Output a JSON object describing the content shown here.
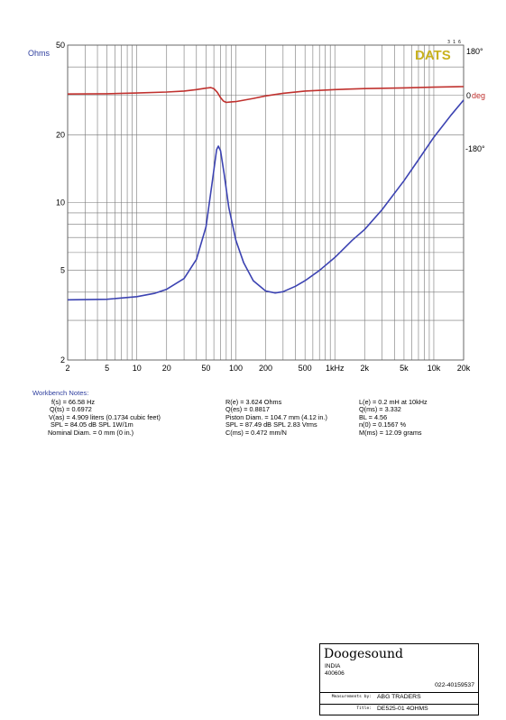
{
  "chart_data": {
    "type": "line",
    "x_scale": "log",
    "y_scale": "log",
    "xlim": [
      2,
      20000
    ],
    "ylim": [
      2,
      50
    ],
    "xticks": [
      2,
      5,
      10,
      20,
      50,
      100,
      200,
      500,
      1000,
      2000,
      5000,
      10000,
      20000
    ],
    "xtick_labels": [
      "2",
      "5",
      "10",
      "20",
      "50",
      "100",
      "200",
      "500",
      "1kHz",
      "2k",
      "5k",
      "10k",
      "20k"
    ],
    "yticks": [
      2,
      5,
      10,
      20,
      50
    ],
    "ytick_labels": [
      "2",
      "5",
      "10",
      "20",
      "50"
    ],
    "ylabel": "Ohms",
    "phase_axis": {
      "range": [
        -180,
        180
      ],
      "labels": [
        "180°",
        "0",
        "deg",
        "-180°"
      ]
    },
    "grid": true,
    "series": [
      {
        "color": "#3c43b2",
        "axis": "impedance_ohms",
        "points": [
          [
            2,
            3.7
          ],
          [
            5,
            3.72
          ],
          [
            10,
            3.82
          ],
          [
            15,
            3.95
          ],
          [
            20,
            4.12
          ],
          [
            30,
            4.6
          ],
          [
            40,
            5.6
          ],
          [
            50,
            7.8
          ],
          [
            58,
            12.5
          ],
          [
            64,
            17.2
          ],
          [
            66.58,
            17.8
          ],
          [
            70,
            17.0
          ],
          [
            76,
            13.5
          ],
          [
            85,
            9.5
          ],
          [
            100,
            6.8
          ],
          [
            120,
            5.4
          ],
          [
            150,
            4.5
          ],
          [
            200,
            4.05
          ],
          [
            250,
            3.97
          ],
          [
            300,
            4.02
          ],
          [
            400,
            4.25
          ],
          [
            500,
            4.5
          ],
          [
            700,
            5.0
          ],
          [
            1000,
            5.7
          ],
          [
            1500,
            6.8
          ],
          [
            2000,
            7.6
          ],
          [
            3000,
            9.3
          ],
          [
            5000,
            12.5
          ],
          [
            7000,
            15.5
          ],
          [
            10000,
            19.5
          ],
          [
            15000,
            24.5
          ],
          [
            20000,
            28.5
          ]
        ]
      },
      {
        "color": "#c0322f",
        "axis": "phase_deg",
        "points": [
          [
            2,
            3
          ],
          [
            5,
            4
          ],
          [
            10,
            7
          ],
          [
            20,
            11
          ],
          [
            30,
            15
          ],
          [
            40,
            21
          ],
          [
            50,
            27
          ],
          [
            56,
            29
          ],
          [
            60,
            25
          ],
          [
            65,
            10
          ],
          [
            70,
            -10
          ],
          [
            75,
            -22
          ],
          [
            80,
            -27
          ],
          [
            90,
            -25
          ],
          [
            100,
            -24
          ],
          [
            150,
            -13
          ],
          [
            200,
            -4
          ],
          [
            300,
            6
          ],
          [
            500,
            15
          ],
          [
            1000,
            21
          ],
          [
            2000,
            25
          ],
          [
            5000,
            28
          ],
          [
            10000,
            31
          ],
          [
            20000,
            33
          ]
        ]
      }
    ]
  },
  "branding": {
    "logo": "DATS",
    "version": "3 1 6",
    "logo_color": "#c9b21f"
  },
  "notes": {
    "title": "Workbench Notes:",
    "col1": [
      "f(s) = 66.58 Hz",
      "Q(ts) = 0.6972",
      "V(as) = 4.909 liters  (0.1734 cubic feet)",
      "SPL = 84.05 dB SPL 1W/1m",
      "Nominal Diam. = 0 mm (0 in.)"
    ],
    "col2": [
      "R(e) = 3.624 Ohms",
      "Q(es) = 0.8817",
      "Piston Diam. = 104.7 mm (4.12 in.)",
      "SPL = 87.49 dB SPL 2.83 Vrms",
      "C(ms) = 0.472 mm/N"
    ],
    "col3": [
      "L(e) = 0.2 mH at 10kHz",
      "Q(ms) = 3.332",
      "BL = 4.56",
      "n(0) = 0.1567 %",
      "M(ms) = 12.09 grams"
    ]
  },
  "titleblock": {
    "company": "Doogesound",
    "address1": "INDIA",
    "address2": "400606",
    "phone": "022-40159537",
    "measurements_label": "Measurements by:",
    "measurements_value": "ABG TRADERS",
    "title_label": "Title:",
    "title_value": "DE525-01 4OHMS"
  }
}
